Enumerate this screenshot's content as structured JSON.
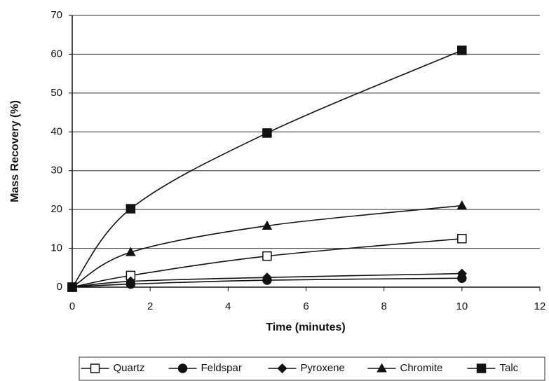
{
  "chart_data": {
    "type": "line",
    "x_label": "Time  (minutes)",
    "y_label": "Mass Recovery (%)",
    "x": [
      0,
      1.5,
      5,
      10
    ],
    "series": [
      {
        "name": "Quartz",
        "color": "#111111",
        "marker": "square-open",
        "values": [
          0,
          3,
          8,
          12.5
        ]
      },
      {
        "name": "Feldspar",
        "color": "#111111",
        "marker": "circle",
        "values": [
          0,
          0.8,
          1.8,
          2.3
        ]
      },
      {
        "name": "Pyroxene",
        "color": "#111111",
        "marker": "diamond",
        "values": [
          0,
          1.5,
          2.5,
          3.5
        ]
      },
      {
        "name": "Chromite",
        "color": "#111111",
        "marker": "triangle",
        "values": [
          0,
          9,
          15.8,
          21
        ]
      },
      {
        "name": "Talc",
        "color": "#111111",
        "marker": "square",
        "values": [
          0,
          20.2,
          39.7,
          61
        ]
      }
    ],
    "xlim": [
      0,
      12
    ],
    "xticks": [
      0,
      2,
      4,
      6,
      8,
      10,
      12
    ],
    "ylim": [
      0,
      70
    ],
    "yticks": [
      0,
      10,
      20,
      30,
      40,
      50,
      60,
      70
    ],
    "grid": true,
    "smooth": true,
    "legend": "bottom"
  }
}
